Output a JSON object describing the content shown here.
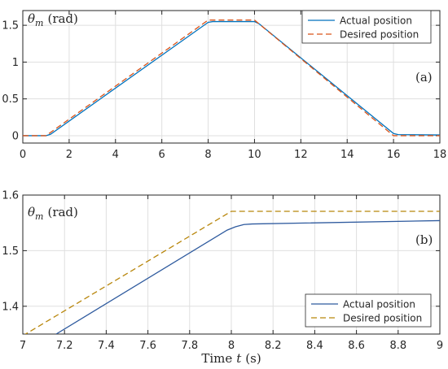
{
  "chart_data": [
    {
      "type": "line",
      "panel_label": "(a)",
      "ylabel_symbol": "θ",
      "ylabel_sub": "m",
      "ylabel_unit": "(rad)",
      "xlim": [
        0,
        18
      ],
      "ylim": [
        -0.1,
        1.7
      ],
      "xticks": [
        0,
        2,
        4,
        6,
        8,
        10,
        12,
        14,
        16,
        18
      ],
      "yticks": [
        0,
        0.5,
        1,
        1.5
      ],
      "ytick_labels": [
        "0",
        "0.5",
        "1",
        "1.5"
      ],
      "grid": true,
      "legend_position": "top-right",
      "series": [
        {
          "name": "Actual position",
          "color": "#0072BD",
          "dash": "solid",
          "x": [
            0,
            1.0,
            1.2,
            8.0,
            8.2,
            10.0,
            10.2,
            16.0,
            16.2,
            18
          ],
          "y": [
            0,
            0,
            0.02,
            1.54,
            1.55,
            1.55,
            1.52,
            0.03,
            0.015,
            0.01
          ]
        },
        {
          "name": "Desired position",
          "color": "#D95319",
          "dash": "dashed",
          "x": [
            0,
            1.0,
            8.0,
            10.0,
            16.0,
            18
          ],
          "y": [
            0,
            0,
            1.5708,
            1.5708,
            0,
            0
          ]
        }
      ]
    },
    {
      "type": "line",
      "panel_label": "(b)",
      "ylabel_symbol": "θ",
      "ylabel_sub": "m",
      "ylabel_unit": "(rad)",
      "xlabel_prefix": "Time",
      "xlabel_var": "t",
      "xlabel_unit": "(s)",
      "xlim": [
        7,
        9
      ],
      "ylim": [
        1.35,
        1.6
      ],
      "xticks": [
        7,
        7.2,
        7.4,
        7.6,
        7.8,
        8,
        8.2,
        8.4,
        8.6,
        8.8,
        9
      ],
      "xtick_labels": [
        "7",
        "7.2",
        "7.4",
        "7.6",
        "7.8",
        "8",
        "8.2",
        "8.4",
        "8.6",
        "8.8",
        "9"
      ],
      "yticks": [
        1.4,
        1.5,
        1.6
      ],
      "ytick_labels": [
        "1.4",
        "1.5",
        "1.6"
      ],
      "grid": true,
      "legend_position": "bottom-right",
      "series": [
        {
          "name": "Actual position",
          "color": "#2E5A9E",
          "dash": "solid",
          "x": [
            7.16,
            7.98,
            8.02,
            8.06,
            8.1,
            9.0
          ],
          "y": [
            1.35,
            1.537,
            1.543,
            1.547,
            1.548,
            1.554
          ]
        },
        {
          "name": "Desired position",
          "color": "#B8860B",
          "dash": "dashed",
          "x": [
            7.0,
            8.0,
            9.0
          ],
          "y": [
            1.347,
            1.5708,
            1.5708
          ]
        }
      ]
    }
  ]
}
